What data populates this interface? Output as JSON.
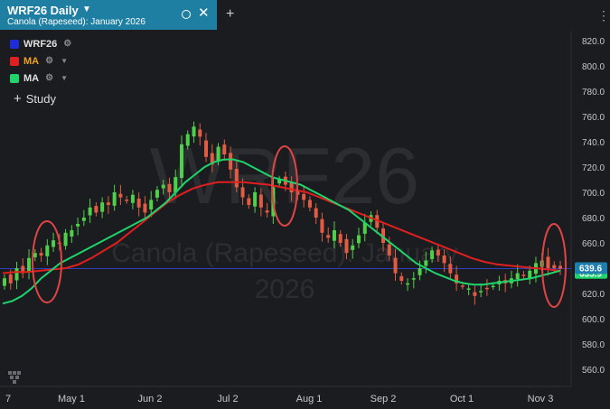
{
  "tab": {
    "title": "WRF26 Daily",
    "subtitle": "Canola (Rapeseed): January 2026"
  },
  "legend": [
    {
      "label": "WRF26",
      "swatch": "#1e2bd8",
      "text_color": "#e0e0e0"
    },
    {
      "label": "MA",
      "swatch": "#e02020",
      "text_color": "#f0a020"
    },
    {
      "label": "MA",
      "swatch": "#1fd46a",
      "text_color": "#e0e0e0"
    }
  ],
  "study_label": "Study",
  "watermark": {
    "line1": "WRF26",
    "line2": "Canola (Rapeseed): January",
    "line3": "2026"
  },
  "colors": {
    "background": "#1b1c20",
    "up": "#4fd04a",
    "down": "#e05c43",
    "ma_slow": "#e01f1f",
    "ma_fast": "#1fd46a",
    "price_line": "#2d3ec0",
    "annotation": "#e04545"
  },
  "chart_data": {
    "type": "candlestick",
    "symbol": "WRF26",
    "interval": "Daily",
    "y_axis": {
      "min": 550,
      "max": 830,
      "ticks": [
        "820.0",
        "800.0",
        "780.0",
        "760.0",
        "740.0",
        "720.0",
        "700.0",
        "680.0",
        "660.0",
        "640.0",
        "620.0",
        "600.0",
        "580.0",
        "560.0"
      ]
    },
    "x_axis": {
      "ticks": [
        "7",
        "May 1",
        "Jun 2",
        "Jul 2",
        "Aug 1",
        "Sep 2",
        "Oct 1",
        "Nov 3"
      ]
    },
    "last_price": "639.6",
    "last_price_value": 639.6,
    "second_label": "635.9",
    "price_path": [
      632,
      628,
      640,
      636,
      648,
      652,
      650,
      658,
      662,
      660,
      668,
      670,
      675,
      680,
      688,
      684,
      692,
      690,
      700,
      696,
      694,
      698,
      688,
      684,
      694,
      702,
      706,
      700,
      712,
      738,
      746,
      752,
      744,
      728,
      722,
      736,
      730,
      718,
      704,
      696,
      690,
      700,
      688,
      684,
      704,
      710,
      706,
      700,
      698,
      694,
      688,
      680,
      668,
      664,
      670,
      660,
      652,
      658,
      666,
      676,
      682,
      672,
      660,
      650,
      636,
      630,
      628,
      632,
      640,
      646,
      654,
      650,
      644,
      636,
      628,
      626,
      624,
      618,
      622,
      624,
      626,
      630,
      628,
      632,
      636,
      634,
      638,
      644,
      646,
      640,
      640,
      639.6
    ],
    "ma_fast": [
      612,
      614,
      618,
      624,
      632,
      638,
      644,
      648,
      652,
      656,
      660,
      664,
      668,
      672,
      676,
      680,
      686,
      692,
      700,
      708,
      714,
      720,
      724,
      726,
      726,
      724,
      720,
      716,
      712,
      710,
      708,
      706,
      702,
      698,
      694,
      690,
      686,
      680,
      674,
      668,
      662,
      656,
      650,
      644,
      640,
      636,
      633,
      630,
      628,
      627,
      627,
      628,
      629,
      630,
      631,
      632,
      634,
      636,
      638
    ],
    "ma_slow": [
      636,
      637,
      637,
      638,
      639,
      640,
      643,
      648,
      654,
      660,
      668,
      676,
      684,
      692,
      698,
      703,
      706,
      708,
      708,
      708,
      707,
      706,
      704,
      702,
      700,
      696,
      692,
      688,
      684,
      680,
      676,
      672,
      668,
      664,
      660,
      656,
      652,
      648,
      645,
      643,
      642,
      641,
      640,
      639,
      638
    ]
  },
  "annotations": [
    {
      "shape": "ellipse",
      "note": "circle at late-April low"
    },
    {
      "shape": "ellipse",
      "note": "circle at mid-July crossover"
    },
    {
      "shape": "ellipse",
      "note": "circle at early-November price"
    }
  ]
}
